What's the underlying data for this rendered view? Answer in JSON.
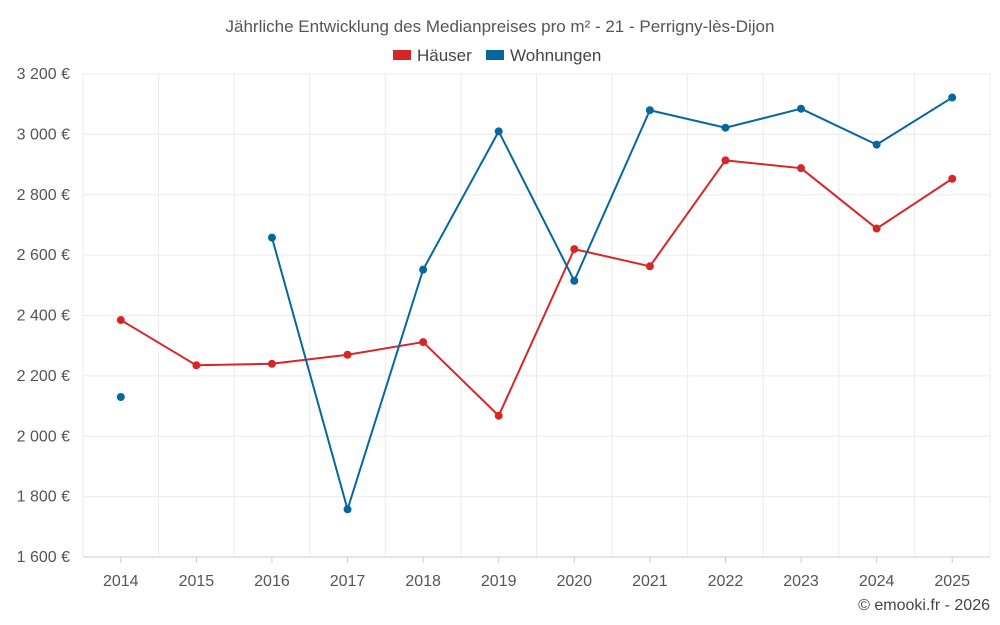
{
  "chart_data": {
    "type": "line",
    "title": "Jährliche Entwicklung des Medianpreises pro m² - 21 - Perrigny-lès-Dijon",
    "categories": [
      "2014",
      "2015",
      "2016",
      "2017",
      "2018",
      "2019",
      "2020",
      "2021",
      "2022",
      "2023",
      "2024",
      "2025"
    ],
    "ylim": [
      1600,
      3200
    ],
    "yticks": [
      1600,
      1800,
      2000,
      2200,
      2400,
      2600,
      2800,
      3000,
      3200
    ],
    "ytick_labels": [
      "1 600 €",
      "1 800 €",
      "2 000 €",
      "2 200 €",
      "2 400 €",
      "2 600 €",
      "2 800 €",
      "3 000 €",
      "3 200 €"
    ],
    "grid": true,
    "legend_position": "top-center",
    "series": [
      {
        "name": "Häuser",
        "color": "#d62728",
        "values": [
          2385,
          2235,
          2240,
          2270,
          2312,
          2068,
          2620,
          2563,
          2914,
          2888,
          2688,
          2853
        ]
      },
      {
        "name": "Wohnungen",
        "color": "#06679f",
        "values": [
          2130,
          null,
          2658,
          1758,
          2552,
          3010,
          2515,
          3080,
          3022,
          3085,
          2966,
          3122
        ]
      }
    ],
    "credit": "© emooki.fr - 2026"
  }
}
